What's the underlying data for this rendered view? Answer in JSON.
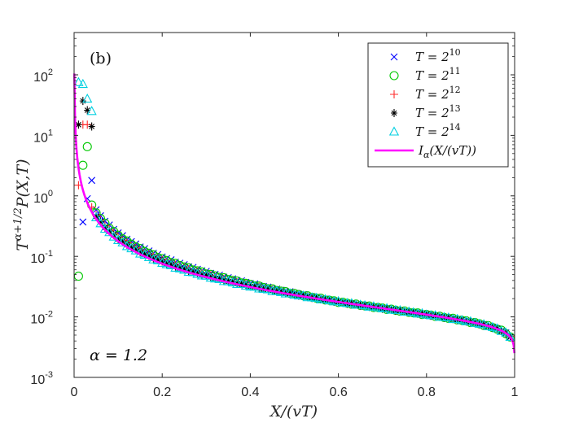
{
  "chart_data": {
    "type": "scatter",
    "panel_label": "(b)",
    "annotation": "α = 1.2",
    "xlabel": "X/(vT)",
    "ylabel": "T^(α+1/2) P(X,T)",
    "ylabel_base": "T",
    "ylabel_exp": "α+1/2",
    "ylabel_rest": "P(X,T)",
    "xlim": [
      0,
      1
    ],
    "ylim": [
      0.001,
      500
    ],
    "yscale": "log",
    "x_ticks": [
      "0",
      "0.2",
      "0.4",
      "0.6",
      "0.8",
      "1"
    ],
    "x_tick_values": [
      0,
      0.2,
      0.4,
      0.6,
      0.8,
      1
    ],
    "y_ticks": [
      {
        "value": 0.001,
        "base": "10",
        "exp": "-3"
      },
      {
        "value": 0.01,
        "base": "10",
        "exp": "-2"
      },
      {
        "value": 0.1,
        "base": "10",
        "exp": "-1"
      },
      {
        "value": 1,
        "base": "10",
        "exp": "0"
      },
      {
        "value": 10,
        "base": "10",
        "exp": "1"
      },
      {
        "value": 100,
        "base": "10",
        "exp": "2"
      }
    ],
    "alpha": 1.2,
    "series": [
      {
        "name": "T = 2^10",
        "label_base": "T = 2",
        "label_exp": "10",
        "marker": "x",
        "color": "#0000ff",
        "shift": 1.45,
        "dx": 0.01,
        "x0": 0.02,
        "x1": 0.99,
        "first_values": [
          0.37,
          0.9,
          1.8
        ]
      },
      {
        "name": "T = 2^11",
        "label_base": "T = 2",
        "label_exp": "11",
        "marker": "o",
        "color": "#00c800",
        "shift": 1.3,
        "dx": 0.01,
        "x0": 0.01,
        "x1": 0.99,
        "first_values": [
          0.047,
          3.2,
          6.5
        ]
      },
      {
        "name": "T = 2^12",
        "label_base": "T = 2",
        "label_exp": "12",
        "marker": "+",
        "color": "#ff2a2a",
        "shift": 1.2,
        "dx": 0.01,
        "x0": 0.01,
        "x1": 0.99,
        "first_values": [
          1.5,
          15,
          15
        ]
      },
      {
        "name": "T = 2^13",
        "label_base": "T = 2",
        "label_exp": "13",
        "marker": "*",
        "color": "#000000",
        "shift": 1.12,
        "dx": 0.01,
        "x0": 0.01,
        "x1": 0.99,
        "first_values": [
          15,
          37,
          26,
          14
        ]
      },
      {
        "name": "T = 2^14",
        "label_base": "T = 2",
        "label_exp": "14",
        "marker": "triangle",
        "color": "#00cfe0",
        "shift": 1.05,
        "dx": 0.01,
        "x0": 0.01,
        "x1": 0.99,
        "first_values": [
          75,
          70,
          40,
          25
        ]
      }
    ],
    "theory_curve": {
      "name": "I_α(X/(vT))",
      "label_main": "I",
      "label_sub": "α",
      "label_rest": "(X/(vT))",
      "color": "#ff00ff"
    },
    "legend_location": "top-right"
  }
}
